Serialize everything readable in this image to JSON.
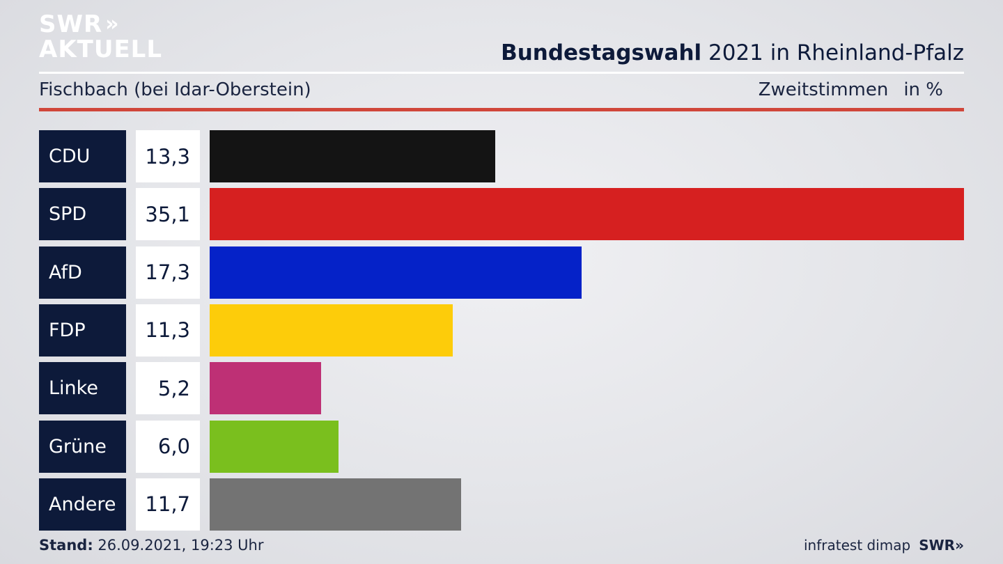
{
  "logo": {
    "line1": "SWR",
    "line1_chevrons": "»",
    "line2": "AKTUELL"
  },
  "header": {
    "title_bold": "Bundestagswahl",
    "title_rest": " 2021 in Rheinland-Pfalz",
    "subtitle": "Fischbach (bei Idar-Oberstein)",
    "measure": "Zweitstimmen",
    "unit": "in %"
  },
  "chart_data": {
    "type": "bar",
    "orientation": "horizontal",
    "categories": [
      "CDU",
      "SPD",
      "AfD",
      "FDP",
      "Linke",
      "Grüne",
      "Andere"
    ],
    "values": [
      13.3,
      35.1,
      17.3,
      11.3,
      5.2,
      6.0,
      11.7
    ],
    "value_labels": [
      "13,3",
      "35,1",
      "17,3",
      "11,3",
      "5,2",
      "6,0",
      "11,7"
    ],
    "colors": [
      "#141414",
      "#d62020",
      "#0522c8",
      "#fdcc0a",
      "#be3075",
      "#7abf1e",
      "#737373"
    ],
    "title": "Bundestagswahl 2021 in Rheinland-Pfalz",
    "subtitle": "Fischbach (bei Idar-Oberstein)",
    "xlabel": "",
    "ylabel": "",
    "unit": "in %",
    "xlim": [
      0,
      35.1
    ],
    "grid": false,
    "legend": "none"
  },
  "footer": {
    "stand_label": "Stand:",
    "stand_value": " 26.09.2021, 19:23 Uhr",
    "source": "infratest dimap",
    "brand": "SWR»"
  }
}
